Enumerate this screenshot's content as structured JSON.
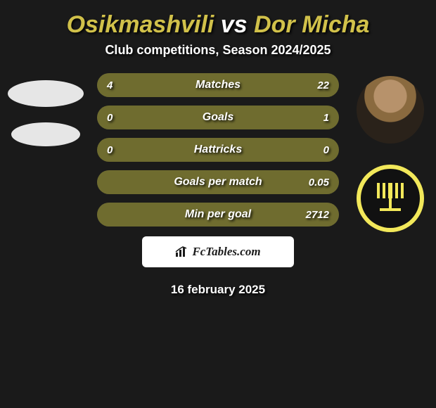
{
  "title": {
    "player1": "Osikmashvili",
    "vs": "vs",
    "player2": "Dor Micha",
    "color_player": "#d1c14a",
    "color_vs": "#ffffff"
  },
  "subtitle": "Club competitions, Season 2024/2025",
  "background_color": "#1a1a1a",
  "bar_style": {
    "olive": "#6f6c2f",
    "dark": "#383838",
    "text_color": "#ffffff",
    "height": 34,
    "radius": 17,
    "gap": 12,
    "font_size_label": 16,
    "font_size_value": 15
  },
  "bars": [
    {
      "label": "Matches",
      "left": "4",
      "right": "22",
      "left_olive": false,
      "right_olive": true,
      "right_pct": 100
    },
    {
      "label": "Goals",
      "left": "0",
      "right": "1",
      "left_olive": false,
      "right_olive": true,
      "right_pct": 100
    },
    {
      "label": "Hattricks",
      "left": "0",
      "right": "0",
      "left_olive": true,
      "right_olive": false,
      "right_pct": 0
    },
    {
      "label": "Goals per match",
      "left": "",
      "right": "0.05",
      "left_olive": false,
      "right_olive": true,
      "right_pct": 100
    },
    {
      "label": "Min per goal",
      "left": "",
      "right": "2712",
      "left_olive": false,
      "right_olive": true,
      "right_pct": 100
    }
  ],
  "footer": {
    "brand": "FcTables.com",
    "box_bg": "#ffffff",
    "text_color": "#1a1a1a",
    "date": "16 february 2025"
  },
  "avatars": {
    "left_ellipse_color": "#e6e6e6",
    "right2_ring_bg": "#f2e85a",
    "right2_inner_bg": "#111111"
  }
}
